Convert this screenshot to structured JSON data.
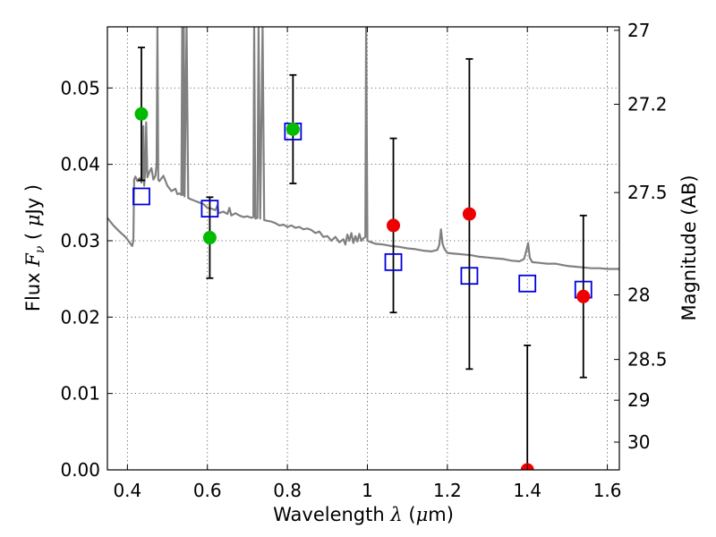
{
  "chart_data": {
    "type": "scatter",
    "xlabel_prefix": "Wavelength",
    "xlabel_symbol": "λ",
    "xlabel_unit_open": "(",
    "xlabel_unit_mu": "μ",
    "xlabel_unit_rest": "m)",
    "ylabel_prefix": "Flux",
    "ylabel_symbol": "F",
    "ylabel_subscript": "ν",
    "ylabel_unit_open": "(",
    "ylabel_unit_mu": "μ",
    "ylabel_unit_rest": "Jy )",
    "y2label": "Magnitude (AB)",
    "xlim": [
      0.35,
      1.63
    ],
    "ylim": [
      0.0,
      0.058
    ],
    "grid": true,
    "x_ticks": [
      0.4,
      0.6,
      0.8,
      1.0,
      1.2,
      1.4,
      1.6
    ],
    "x_tick_labels": [
      "0.4",
      "0.6",
      "0.8",
      "1",
      "1.2",
      "1.4",
      "1.6"
    ],
    "y_ticks": [
      0.0,
      0.01,
      0.02,
      0.03,
      0.04,
      0.05
    ],
    "y_tick_labels": [
      "0.00",
      "0.01",
      "0.02",
      "0.03",
      "0.04",
      "0.05"
    ],
    "y2_ticks": [
      27,
      27.2,
      27.5,
      28,
      28.5,
      29,
      30
    ],
    "y2_tick_labels": [
      "27",
      "27.2",
      "27.5",
      "28",
      "28.5",
      "29",
      "30"
    ],
    "colors": {
      "detection": "#00bb00",
      "upper_limit": "#ee0000",
      "model_photometry": "#0000dd",
      "spectrum": "#808080",
      "errorbar": "#000000"
    },
    "observed": [
      {
        "x": 0.435,
        "y": 0.0466,
        "err": 0.0087,
        "group": "detection"
      },
      {
        "x": 0.606,
        "y": 0.0304,
        "err": 0.0053,
        "group": "detection"
      },
      {
        "x": 0.814,
        "y": 0.0446,
        "err": 0.0071,
        "group": "detection"
      },
      {
        "x": 1.065,
        "y": 0.032,
        "err": 0.0114,
        "group": "upper_limit"
      },
      {
        "x": 1.255,
        "y": 0.0335,
        "err": 0.0203,
        "group": "upper_limit"
      },
      {
        "x": 1.4,
        "y": 0.0,
        "err": 0.0163,
        "group": "upper_limit"
      },
      {
        "x": 1.54,
        "y": 0.0227,
        "err": 0.0106,
        "group": "upper_limit"
      }
    ],
    "model_photometry": [
      {
        "x": 0.435,
        "y": 0.0358
      },
      {
        "x": 0.606,
        "y": 0.0342
      },
      {
        "x": 0.814,
        "y": 0.0443
      },
      {
        "x": 1.065,
        "y": 0.0272
      },
      {
        "x": 1.255,
        "y": 0.0254
      },
      {
        "x": 1.4,
        "y": 0.0244
      },
      {
        "x": 1.54,
        "y": 0.0236
      }
    ],
    "model_spectrum": [
      [
        0.35,
        0.033
      ],
      [
        0.365,
        0.032
      ],
      [
        0.38,
        0.0312
      ],
      [
        0.395,
        0.0305
      ],
      [
        0.405,
        0.0298
      ],
      [
        0.412,
        0.0293
      ],
      [
        0.415,
        0.03
      ],
      [
        0.417,
        0.038
      ],
      [
        0.42,
        0.0384
      ],
      [
        0.425,
        0.0378
      ],
      [
        0.43,
        0.0382
      ],
      [
        0.435,
        0.0376
      ],
      [
        0.438,
        0.0381
      ],
      [
        0.44,
        0.045
      ],
      [
        0.442,
        0.0372
      ],
      [
        0.445,
        0.0395
      ],
      [
        0.447,
        0.0455
      ],
      [
        0.45,
        0.0383
      ],
      [
        0.455,
        0.039
      ],
      [
        0.46,
        0.0395
      ],
      [
        0.465,
        0.038
      ],
      [
        0.47,
        0.0385
      ],
      [
        0.473,
        0.04
      ],
      [
        0.475,
        0.058
      ],
      [
        0.477,
        0.038
      ],
      [
        0.48,
        0.0378
      ],
      [
        0.49,
        0.0385
      ],
      [
        0.5,
        0.0372
      ],
      [
        0.51,
        0.0365
      ],
      [
        0.52,
        0.0368
      ],
      [
        0.525,
        0.0361
      ],
      [
        0.53,
        0.0362
      ],
      [
        0.535,
        0.036
      ],
      [
        0.537,
        0.058
      ],
      [
        0.539,
        0.036
      ],
      [
        0.541,
        0.058
      ],
      [
        0.543,
        0.0358
      ],
      [
        0.548,
        0.058
      ],
      [
        0.552,
        0.0356
      ],
      [
        0.56,
        0.0354
      ],
      [
        0.57,
        0.0352
      ],
      [
        0.58,
        0.035
      ],
      [
        0.59,
        0.0348
      ],
      [
        0.6,
        0.0343
      ],
      [
        0.61,
        0.0342
      ],
      [
        0.62,
        0.034
      ],
      [
        0.625,
        0.0346
      ],
      [
        0.628,
        0.0336
      ],
      [
        0.64,
        0.0338
      ],
      [
        0.65,
        0.0335
      ],
      [
        0.655,
        0.0343
      ],
      [
        0.66,
        0.0333
      ],
      [
        0.67,
        0.0336
      ],
      [
        0.68,
        0.0333
      ],
      [
        0.69,
        0.0331
      ],
      [
        0.7,
        0.0332
      ],
      [
        0.71,
        0.033
      ],
      [
        0.715,
        0.0331
      ],
      [
        0.717,
        0.058
      ],
      [
        0.72,
        0.0329
      ],
      [
        0.725,
        0.033
      ],
      [
        0.728,
        0.058
      ],
      [
        0.732,
        0.0329
      ],
      [
        0.738,
        0.058
      ],
      [
        0.742,
        0.0327
      ],
      [
        0.75,
        0.0326
      ],
      [
        0.76,
        0.0325
      ],
      [
        0.77,
        0.0323
      ],
      [
        0.78,
        0.032
      ],
      [
        0.79,
        0.0321
      ],
      [
        0.8,
        0.0318
      ],
      [
        0.81,
        0.032
      ],
      [
        0.82,
        0.0317
      ],
      [
        0.83,
        0.0318
      ],
      [
        0.84,
        0.0315
      ],
      [
        0.85,
        0.0316
      ],
      [
        0.86,
        0.0314
      ],
      [
        0.87,
        0.031
      ],
      [
        0.88,
        0.0312
      ],
      [
        0.89,
        0.0305
      ],
      [
        0.9,
        0.0306
      ],
      [
        0.91,
        0.03
      ],
      [
        0.92,
        0.0305
      ],
      [
        0.93,
        0.0298
      ],
      [
        0.94,
        0.0302
      ],
      [
        0.945,
        0.0295
      ],
      [
        0.95,
        0.0308
      ],
      [
        0.955,
        0.03
      ],
      [
        0.96,
        0.031
      ],
      [
        0.965,
        0.0297
      ],
      [
        0.97,
        0.0306
      ],
      [
        0.975,
        0.0299
      ],
      [
        0.98,
        0.0309
      ],
      [
        0.985,
        0.03
      ],
      [
        0.99,
        0.0303
      ],
      [
        0.995,
        0.0305
      ],
      [
        0.997,
        0.058
      ],
      [
        1.0,
        0.03
      ],
      [
        1.01,
        0.0298
      ],
      [
        1.02,
        0.0296
      ],
      [
        1.04,
        0.0295
      ],
      [
        1.06,
        0.0293
      ],
      [
        1.08,
        0.0292
      ],
      [
        1.1,
        0.029
      ],
      [
        1.12,
        0.0289
      ],
      [
        1.14,
        0.0287
      ],
      [
        1.16,
        0.0286
      ],
      [
        1.175,
        0.0288
      ],
      [
        1.18,
        0.0295
      ],
      [
        1.184,
        0.0315
      ],
      [
        1.188,
        0.0296
      ],
      [
        1.192,
        0.029
      ],
      [
        1.2,
        0.0284
      ],
      [
        1.22,
        0.0283
      ],
      [
        1.24,
        0.0282
      ],
      [
        1.26,
        0.0281
      ],
      [
        1.28,
        0.0279
      ],
      [
        1.3,
        0.0278
      ],
      [
        1.32,
        0.0277
      ],
      [
        1.34,
        0.0276
      ],
      [
        1.36,
        0.0274
      ],
      [
        1.38,
        0.0273
      ],
      [
        1.392,
        0.0276
      ],
      [
        1.398,
        0.0288
      ],
      [
        1.402,
        0.0297
      ],
      [
        1.406,
        0.0278
      ],
      [
        1.412,
        0.0272
      ],
      [
        1.43,
        0.0271
      ],
      [
        1.45,
        0.027
      ],
      [
        1.47,
        0.027
      ],
      [
        1.49,
        0.0268
      ],
      [
        1.5,
        0.0267
      ],
      [
        1.52,
        0.0266
      ],
      [
        1.54,
        0.0265
      ],
      [
        1.56,
        0.0264
      ],
      [
        1.58,
        0.0264
      ],
      [
        1.6,
        0.0263
      ],
      [
        1.63,
        0.0263
      ]
    ]
  }
}
